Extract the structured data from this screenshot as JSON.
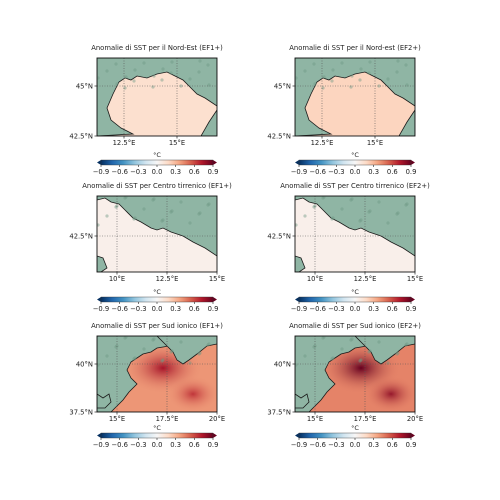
{
  "chart_data": [
    {
      "type": "heatmap",
      "title": "Anomalie di SST per il Nord-Est (EF1+)",
      "x_ticks": [
        "12.5°E",
        "15°E"
      ],
      "y_ticks": [
        "45°N",
        "42.5°N"
      ],
      "colorbar": {
        "label": "°C",
        "ticks": [
          "−0.9",
          "−0.6",
          "−0.3",
          "0.0",
          "0.3",
          "0.6",
          "0.9"
        ],
        "range": [
          -0.9,
          0.9
        ]
      },
      "sea_anomaly": 0.15
    },
    {
      "type": "heatmap",
      "title": "Anomalie di SST per il Nord-est (EF2+)",
      "x_ticks": [
        "12.5°E",
        "15°E"
      ],
      "y_ticks": [
        "45°N",
        "42.5°N"
      ],
      "colorbar": {
        "label": "°C",
        "ticks": [
          "−0.9",
          "−0.6",
          "−0.3",
          "0.0",
          "0.3",
          "0.6",
          "0.9"
        ],
        "range": [
          -0.9,
          0.9
        ]
      },
      "sea_anomaly": 0.2
    },
    {
      "type": "heatmap",
      "title": "Anomalie di SST per Centro tirrenico (EF1+)",
      "x_ticks": [
        "10°E",
        "12.5°E",
        "15°E"
      ],
      "y_ticks": [
        "42.5°N"
      ],
      "colorbar": {
        "label": "°C",
        "ticks": [
          "−0.9",
          "−0.6",
          "−0.3",
          "0.0",
          "0.3",
          "0.6",
          "0.9"
        ],
        "range": [
          -0.9,
          0.9
        ]
      },
      "sea_anomaly": 0.05
    },
    {
      "type": "heatmap",
      "title": "Anomalie di SST per Centro tirrenico (EF2+)",
      "x_ticks": [
        "10°E",
        "12.5°E",
        "15°E"
      ],
      "y_ticks": [
        "42.5°N"
      ],
      "colorbar": {
        "label": "°C",
        "ticks": [
          "−0.9",
          "−0.6",
          "−0.3",
          "0.0",
          "0.3",
          "0.6",
          "0.9"
        ],
        "range": [
          -0.9,
          0.9
        ]
      },
      "sea_anomaly": 0.05
    },
    {
      "type": "heatmap",
      "title": "Anomalie di SST per Sud ionico (EF1+)",
      "x_ticks": [
        "15°E",
        "17.5°E",
        "20°E"
      ],
      "y_ticks": [
        "40°N",
        "37.5°N"
      ],
      "colorbar": {
        "label": "°C",
        "ticks": [
          "−0.9",
          "−0.6",
          "−0.3",
          "0.0",
          "0.3",
          "0.6",
          "0.9"
        ],
        "range": [
          -0.9,
          0.9
        ]
      },
      "sea_anomaly": 0.4,
      "hotspot_anomaly": 0.75
    },
    {
      "type": "heatmap",
      "title": "Anomalie di SST per Sud ionico (EF2+)",
      "x_ticks": [
        "15°E",
        "17.5°E",
        "20°E"
      ],
      "y_ticks": [
        "40°N",
        "37.5°N"
      ],
      "colorbar": {
        "label": "°C",
        "ticks": [
          "−0.9",
          "−0.6",
          "−0.3",
          "0.0",
          "0.3",
          "0.6",
          "0.9"
        ],
        "range": [
          -0.9,
          0.9
        ]
      },
      "sea_anomaly": 0.45,
      "hotspot_anomaly": 0.9
    }
  ],
  "colors": {
    "land": "#8fb5a4",
    "frame": "#111111",
    "cmap": [
      "#053061",
      "#2166ac",
      "#4393c3",
      "#92c5de",
      "#d1e5f0",
      "#f7f7f7",
      "#fddbc7",
      "#f4a582",
      "#d6604d",
      "#b2182b",
      "#67001f"
    ]
  }
}
